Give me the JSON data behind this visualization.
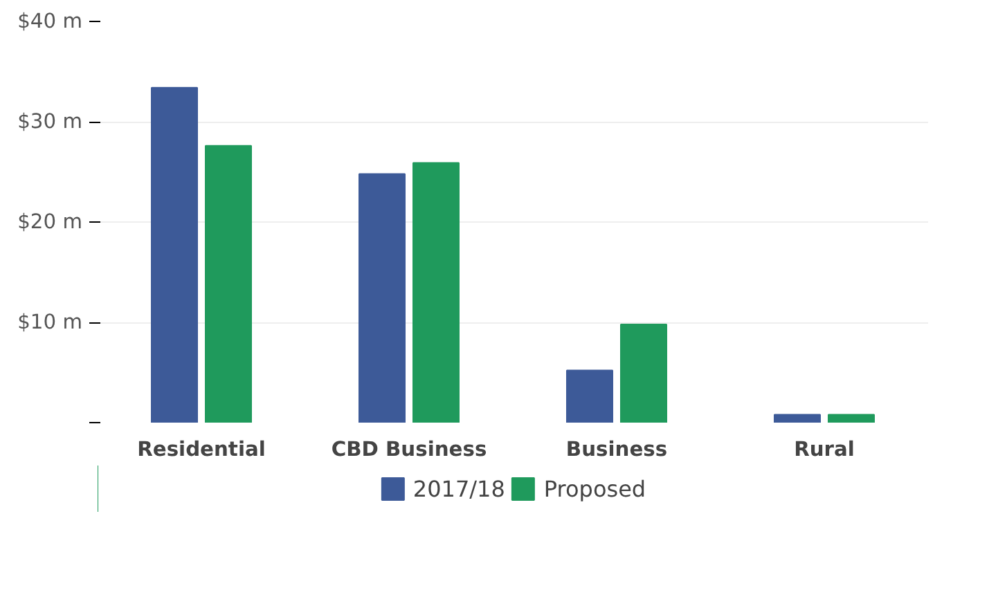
{
  "chart_data": {
    "type": "bar",
    "categories": [
      "Residential",
      "CBD Business",
      "Business",
      "Rural"
    ],
    "series": [
      {
        "name": "2017/18",
        "color": "#3d5a98",
        "values": [
          33.4,
          24.8,
          5.2,
          0.8
        ]
      },
      {
        "name": "Proposed",
        "color": "#1f9a5c",
        "values": [
          27.6,
          25.9,
          9.8,
          0.8
        ]
      }
    ],
    "ylim": [
      0,
      40
    ],
    "yticks": [
      {
        "value": 0,
        "label": null
      },
      {
        "value": 10,
        "label": "$10 m"
      },
      {
        "value": 20,
        "label": "$20 m"
      },
      {
        "value": 30,
        "label": "$30 m"
      },
      {
        "value": 40,
        "label": "$40 m"
      }
    ],
    "grid": "y",
    "legend": "bottom"
  }
}
